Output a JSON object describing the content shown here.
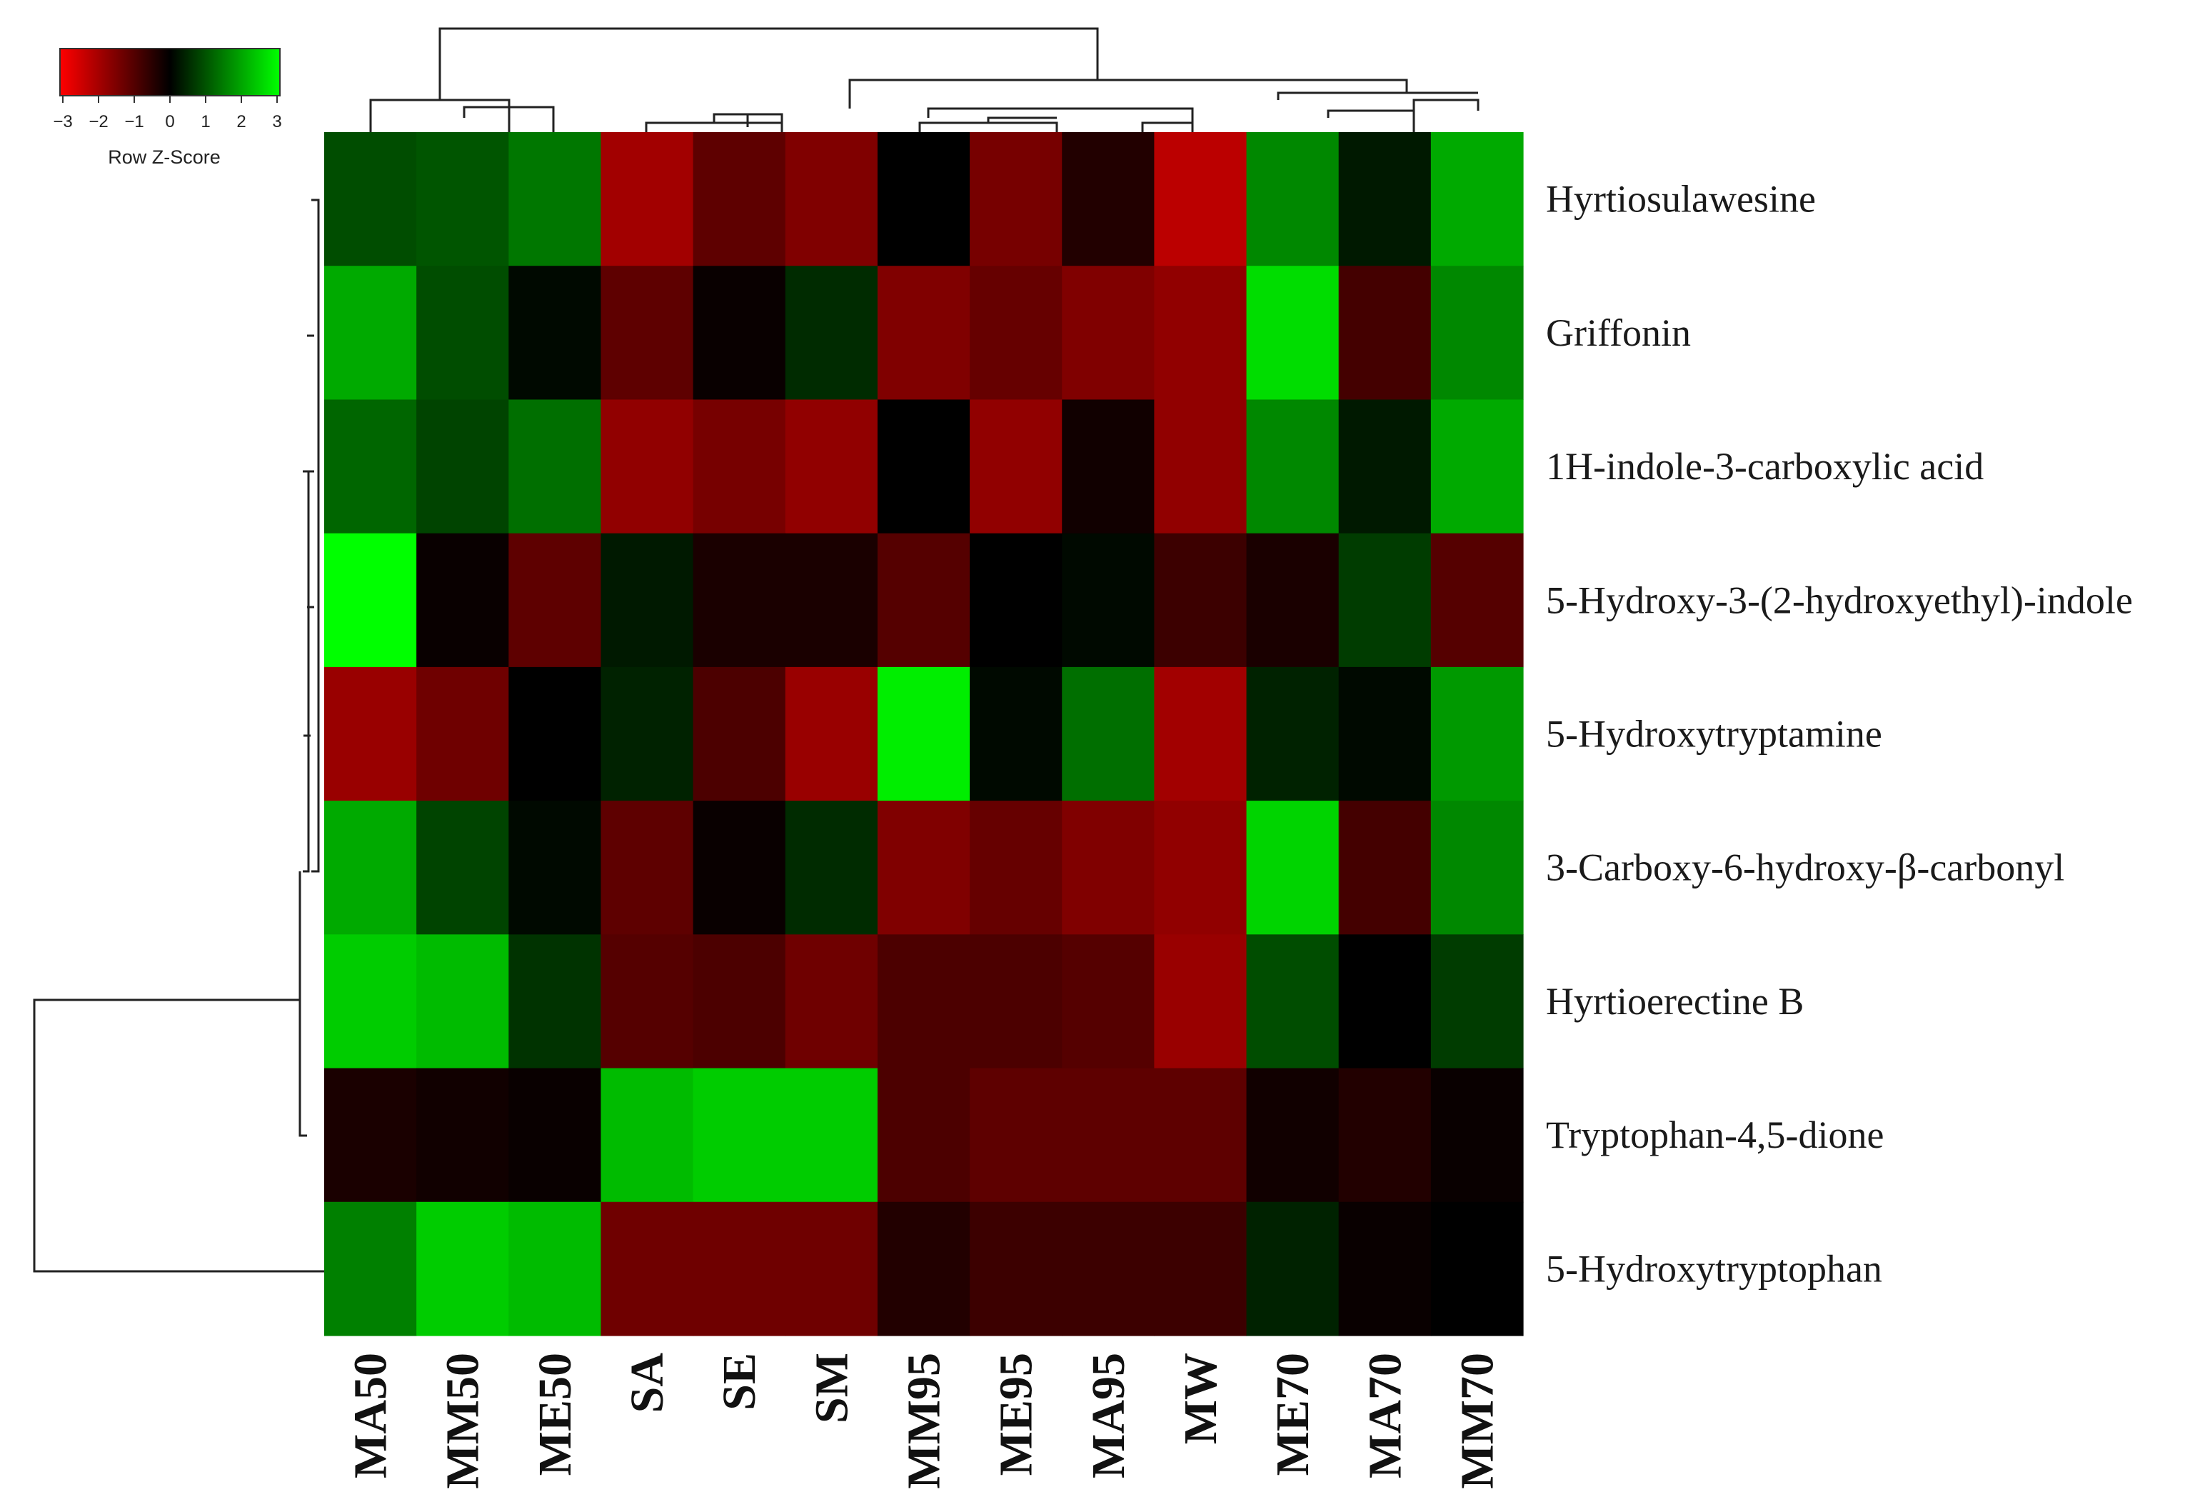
{
  "chart_data": {
    "type": "heatmap",
    "color_key": {
      "title": "Row Z-Score",
      "ticks": [
        "−3",
        "−2",
        "−1",
        "0",
        "1",
        "2",
        "3"
      ],
      "range": [
        -3,
        3
      ],
      "low_color": "#ff0000",
      "mid_color": "#000000",
      "high_color": "#00ff00"
    },
    "columns": [
      "MA50",
      "MM50",
      "ME50",
      "SA",
      "SE",
      "SM",
      "MM95",
      "ME95",
      "MA95",
      "MW",
      "ME70",
      "MA70",
      "MM70"
    ],
    "rows": [
      "Hyrtiosulawesine",
      "Griffonin",
      "1H-indole-3-carboxylic acid",
      "5-Hydroxy-3-(2-hydroxyethyl)-indole",
      "5-Hydroxytryptamine",
      "3-Carboxy-6-hydroxy-β-carbonyl",
      "Hyrtioerectine B",
      "Tryptophan-4,5-dione",
      "5-Hydroxytryptophan"
    ],
    "values": [
      [
        0.9,
        1.0,
        1.4,
        -1.9,
        -1.1,
        -1.5,
        0.0,
        -1.4,
        -0.4,
        -2.2,
        1.6,
        0.3,
        2.0
      ],
      [
        2.0,
        0.9,
        0.1,
        -1.1,
        -0.1,
        0.5,
        -1.5,
        -1.2,
        -1.5,
        -1.7,
        2.6,
        -0.8,
        1.6
      ],
      [
        1.2,
        0.8,
        1.3,
        -1.7,
        -1.4,
        -1.7,
        0.0,
        -1.7,
        -0.2,
        -1.7,
        1.6,
        0.3,
        2.0
      ],
      [
        3.0,
        -0.1,
        -1.1,
        0.3,
        -0.3,
        -0.3,
        -1.0,
        0.0,
        0.1,
        -0.7,
        -0.3,
        0.7,
        -1.0
      ],
      [
        -1.8,
        -1.3,
        0.0,
        0.4,
        -0.9,
        -1.8,
        2.8,
        0.1,
        1.3,
        -1.9,
        0.4,
        0.1,
        1.8
      ],
      [
        2.0,
        0.8,
        0.1,
        -1.1,
        -0.1,
        0.5,
        -1.5,
        -1.2,
        -1.5,
        -1.7,
        2.5,
        -0.8,
        1.6
      ],
      [
        2.4,
        2.2,
        0.6,
        -1.0,
        -0.9,
        -1.3,
        -0.9,
        -0.9,
        -1.0,
        -1.8,
        0.9,
        0.0,
        0.7
      ],
      [
        -0.3,
        -0.2,
        -0.1,
        2.2,
        2.4,
        2.4,
        -0.9,
        -1.1,
        -1.1,
        -1.1,
        -0.2,
        -0.4,
        -0.1
      ],
      [
        1.5,
        2.4,
        2.2,
        -1.3,
        -1.3,
        -1.3,
        -0.4,
        -0.7,
        -0.7,
        -0.7,
        0.4,
        -0.1,
        0.0
      ]
    ]
  }
}
